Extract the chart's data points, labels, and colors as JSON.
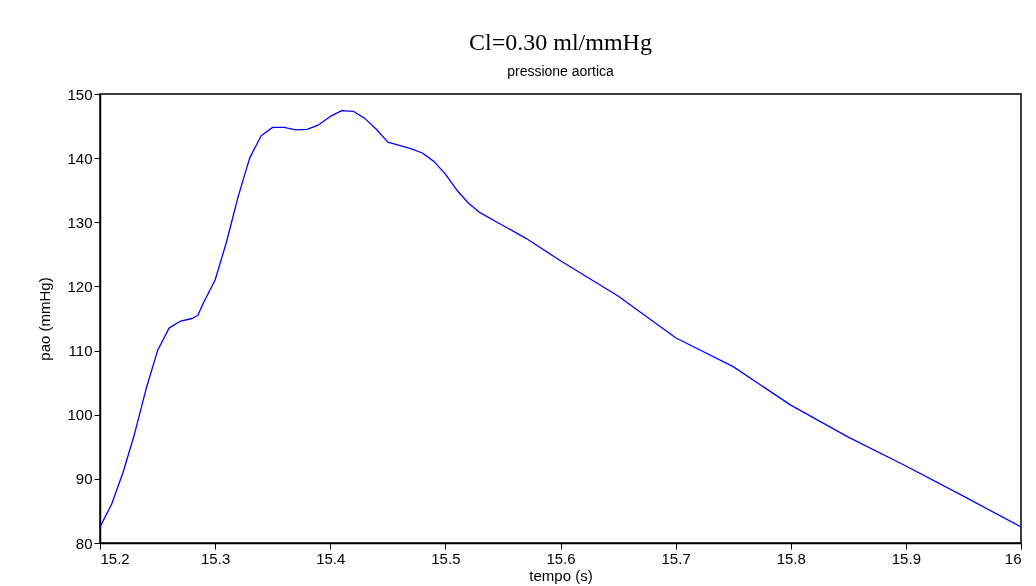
{
  "chart_data": {
    "type": "line",
    "title": "Cl=0.30  ml/mmHg",
    "subtitle": "pressione aortica",
    "xlabel": "tempo (s)",
    "ylabel": "pao (mmHg)",
    "x": [
      15.2,
      15.21,
      15.22,
      15.23,
      15.24,
      15.25,
      15.26,
      15.27,
      15.28,
      15.285,
      15.29,
      15.3,
      15.31,
      15.32,
      15.33,
      15.34,
      15.35,
      15.36,
      15.37,
      15.38,
      15.39,
      15.4,
      15.41,
      15.42,
      15.43,
      15.44,
      15.45,
      15.46,
      15.47,
      15.48,
      15.49,
      15.5,
      15.51,
      15.52,
      15.53,
      15.55,
      15.57,
      15.6,
      15.65,
      15.7,
      15.75,
      15.8,
      15.85,
      15.9,
      15.95,
      16.0
    ],
    "series": [
      {
        "color": "#0000ff",
        "values": [
          82.5,
          86,
          91,
          97,
          104,
          110,
          113.5,
          114.6,
          115,
          115.5,
          117.5,
          121,
          127,
          134,
          140,
          143.5,
          144.8,
          144.8,
          144.4,
          144.5,
          145.2,
          146.5,
          147.4,
          147.3,
          146.2,
          144.5,
          142.5,
          142,
          141.5,
          140.8,
          139.5,
          137.5,
          135,
          133,
          131.5,
          129.5,
          127.5,
          124,
          118.5,
          112,
          107.5,
          101.5,
          96.5,
          92,
          87.3,
          82.5
        ]
      }
    ],
    "xlim": [
      15.2,
      16
    ],
    "xticks": [
      15.2,
      15.3,
      15.4,
      15.5,
      15.6,
      15.7,
      15.8,
      15.9,
      16
    ],
    "ylim": [
      80,
      150
    ],
    "yticks": [
      80,
      90,
      100,
      110,
      120,
      130,
      140,
      150
    ],
    "grid": false,
    "legend": false,
    "marker": "none",
    "line_style": "solid"
  }
}
